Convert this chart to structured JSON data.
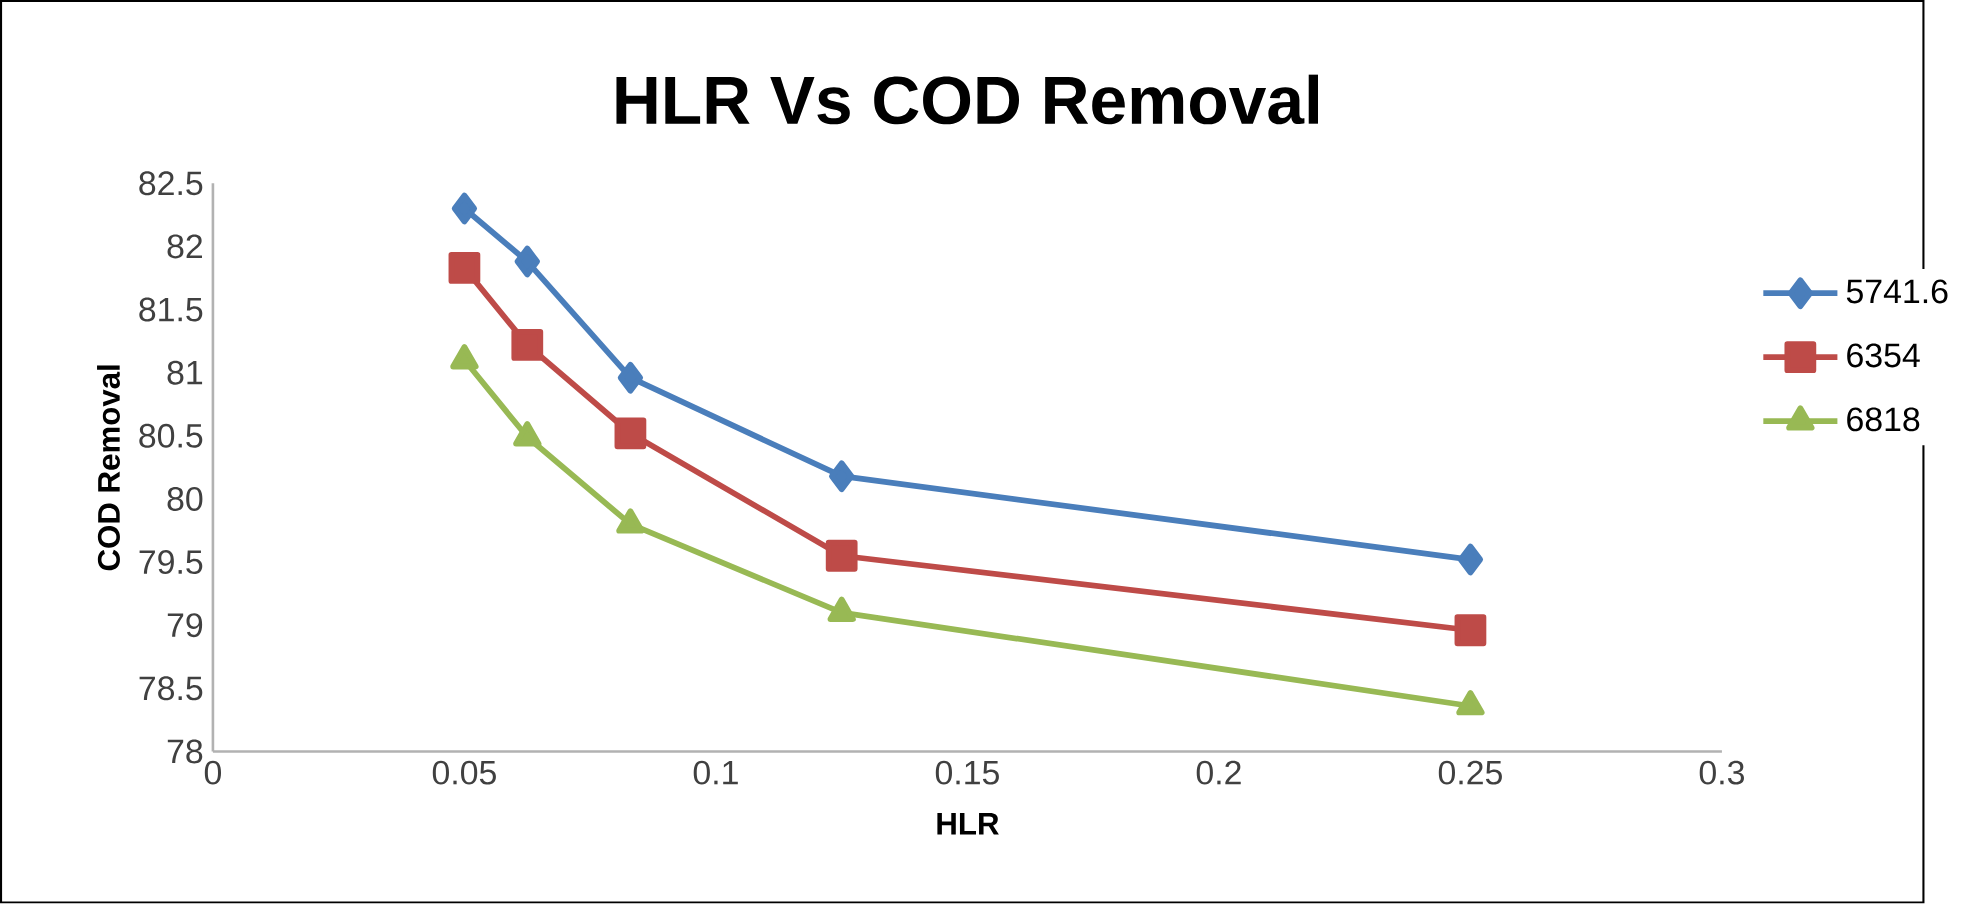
{
  "chart_data": {
    "type": "line",
    "title": "HLR  Vs COD Removal",
    "xlabel": "HLR",
    "ylabel": "COD Removal",
    "xlim": [
      0,
      0.3
    ],
    "xticks": [
      0,
      0.05,
      0.1,
      0.15,
      0.2,
      0.25,
      0.3
    ],
    "ylim": [
      78,
      82.5
    ],
    "yticks": [
      78,
      78.5,
      79,
      79.5,
      80,
      80.5,
      81,
      81.5,
      82,
      82.5
    ],
    "grid": false,
    "legend": "right",
    "series": [
      {
        "name": "5741.6",
        "color": "#4a7ebb",
        "marker": "diamond",
        "x": [
          0.05,
          0.0625,
          0.083,
          0.125,
          0.25
        ],
        "values": [
          82.3,
          81.88,
          80.96,
          80.18,
          79.52
        ]
      },
      {
        "name": "6354",
        "color": "#be4b48",
        "marker": "square",
        "x": [
          0.05,
          0.0625,
          0.083,
          0.125,
          0.25
        ],
        "values": [
          81.83,
          81.22,
          80.52,
          79.55,
          78.96
        ]
      },
      {
        "name": "6818",
        "color": "#98b954",
        "marker": "triangle",
        "x": [
          0.05,
          0.0625,
          0.083,
          0.125,
          0.25
        ],
        "values": [
          81.1,
          80.49,
          79.8,
          79.1,
          78.36
        ]
      }
    ]
  }
}
